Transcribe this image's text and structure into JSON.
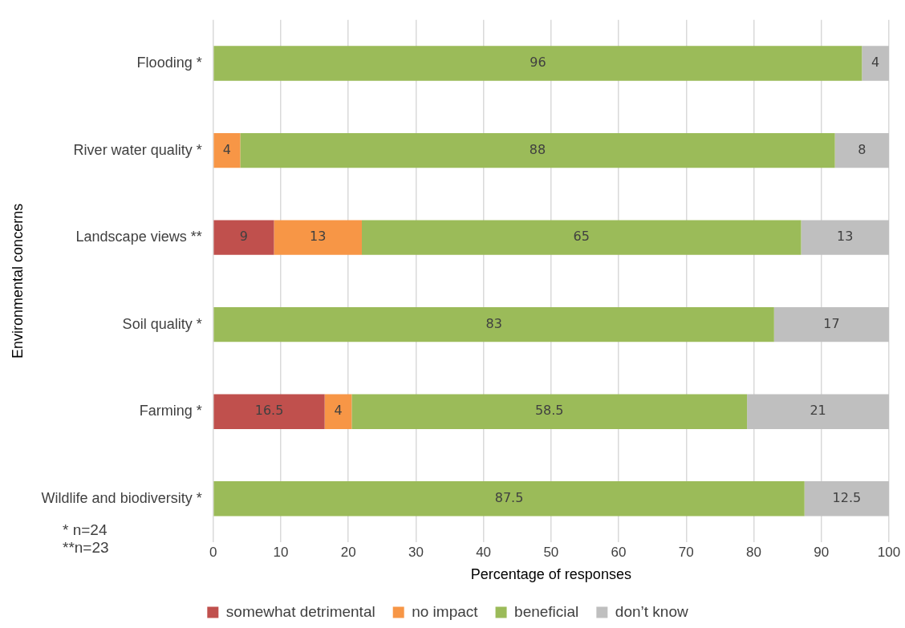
{
  "chart_data": {
    "type": "bar",
    "orientation": "horizontal",
    "stacked": true,
    "categories": [
      "Flooding *",
      "River water quality *",
      "Landscape views **",
      "Soil quality *",
      "Farming *",
      "Wildlife and biodiversity *"
    ],
    "series": [
      {
        "name": "somewhat detrimental",
        "color": "#c0504d",
        "values": [
          null,
          null,
          9,
          null,
          16.5,
          null
        ]
      },
      {
        "name": "no impact",
        "color": "#f79646",
        "values": [
          null,
          4,
          13,
          null,
          4,
          null
        ]
      },
      {
        "name": "beneficial",
        "color": "#9bbb59",
        "values": [
          96,
          88,
          65,
          83,
          58.5,
          87.5
        ]
      },
      {
        "name": "don’t know",
        "color": "#bfbfbf",
        "values": [
          4,
          8,
          13,
          17,
          21,
          12.5
        ]
      }
    ],
    "xlim": [
      0,
      100
    ],
    "xticks": [
      0,
      10,
      20,
      30,
      40,
      50,
      60,
      70,
      80,
      90,
      100
    ],
    "xlabel": "Percentage of responses",
    "ylabel": "Environmental concerns",
    "grid": "x",
    "legend": "bottom",
    "data_labels": true,
    "annotations": [
      "* n=24",
      "**n=23"
    ]
  }
}
